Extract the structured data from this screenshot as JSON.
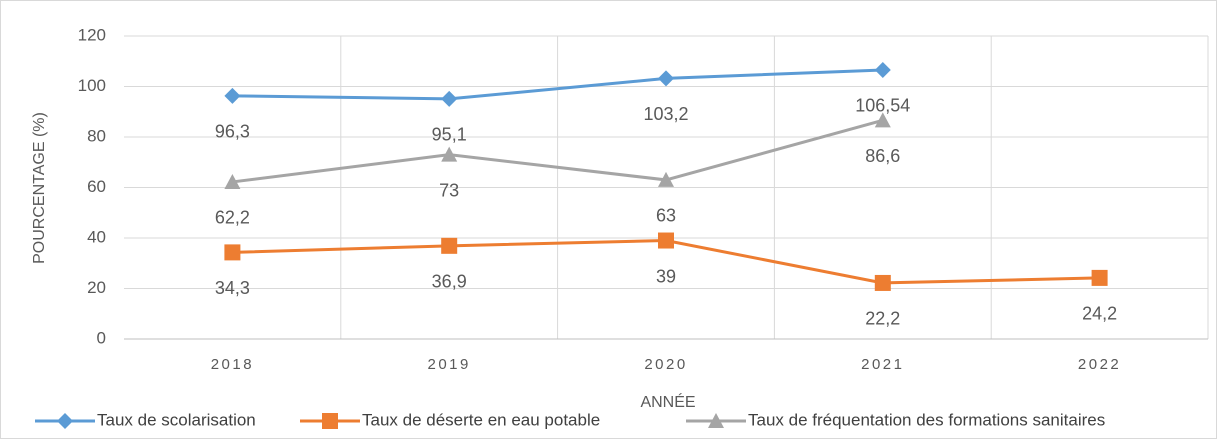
{
  "chart_data": {
    "type": "line",
    "x_label": "ANNÉE",
    "y_label": "POURCENTAGE (%)",
    "categories": [
      "2018",
      "2019",
      "2020",
      "2021",
      "2022"
    ],
    "series": [
      {
        "name": "Taux de scolarisation",
        "color": "#5b9bd5",
        "marker": "diamond",
        "values": [
          96.3,
          95.1,
          103.2,
          106.54,
          null
        ],
        "value_labels": [
          "96,3",
          "95,1",
          "103,2",
          "106,54",
          null
        ]
      },
      {
        "name": "Taux de déserte en eau potable",
        "color": "#ed7d31",
        "marker": "square",
        "values": [
          34.3,
          36.9,
          39,
          22.2,
          24.2
        ],
        "value_labels": [
          "34,3",
          "36,9",
          "39",
          "22,2",
          "24,2"
        ]
      },
      {
        "name": "Taux de fréquentation des formations sanitaires",
        "color": "#a5a5a5",
        "marker": "triangle",
        "values": [
          62.2,
          73,
          63,
          86.6,
          null
        ],
        "value_labels": [
          "62,2",
          "73",
          "63",
          "86,6",
          null
        ]
      }
    ],
    "ylim": [
      0,
      120
    ],
    "yticks": [
      0,
      20,
      40,
      60,
      80,
      100,
      120
    ],
    "grid": true,
    "legend": "bottom"
  }
}
